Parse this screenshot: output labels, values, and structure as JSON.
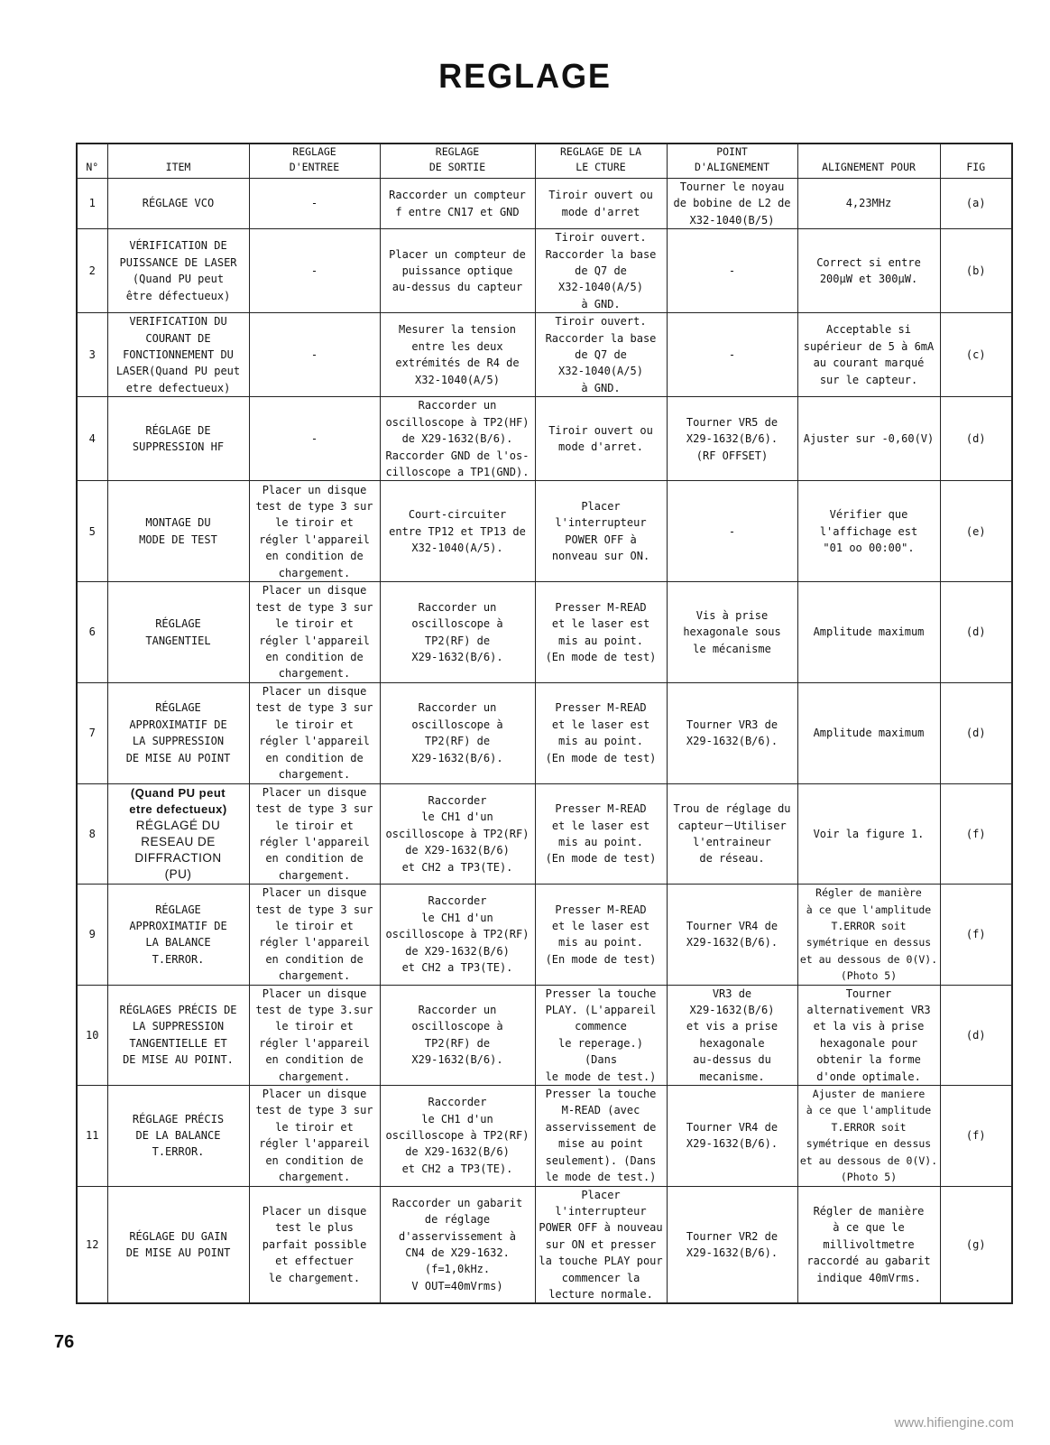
{
  "title": "REGLAGE",
  "page_number": "76",
  "watermark": "www.hifiengine.com",
  "table": {
    "headers": [
      "N°",
      "ITEM",
      "REGLAGE\nD'ENTREE",
      "REGLAGE\nDE SORTIE",
      "REGLAGE DE LA\nLE CTURE",
      "POINT\nD'ALIGNEMENT",
      "ALIGNEMENT POUR",
      "FIG"
    ],
    "rows": [
      [
        "1",
        "RÉGLAGE VCO",
        "-",
        "Raccorder un compteur\nf entre CN17 et GND",
        "Tiroir ouvert ou\nmode d'arret",
        "Tourner le noyau\nde bobine de L2 de\nX32-1040(B/5)",
        "4,23MHz",
        "(a)"
      ],
      [
        "2",
        "VÉRIFICATION DE\nPUISSANCE DE LASER\n(Quand PU peut\nêtre défectueux)",
        "-",
        "Placer un compteur de\npuissance optique\nau-dessus du capteur",
        "Tiroir ouvert.\nRaccorder la base\nde Q7 de\nX32-1040(A/5)\nà GND.",
        "-",
        "Correct si entre\n200μW et 300μW.",
        "(b)"
      ],
      [
        "3",
        "VERIFICATION DU\nCOURANT DE\nFONCTIONNEMENT DU\nLASER(Quand PU peut\netre defectueux)",
        "-",
        "Mesurer la tension\nentre les deux\nextrémités de R4 de\nX32-1040(A/5)",
        "Tiroir ouvert.\nRaccorder la base\nde Q7 de\nX32-1040(A/5)\nà GND.",
        "-",
        "Acceptable si\nsupérieur de 5 à 6mA\nau courant marqué\nsur le capteur.",
        "(c)"
      ],
      [
        "4",
        "RÉGLAGE DE\nSUPPRESSION HF",
        "-",
        "Raccorder un\noscilloscope à TP2(HF)\nde X29-1632(B/6).\nRaccorder GND de l'os-\ncilloscope a TP1(GND).",
        "Tiroir ouvert ou\nmode d'arret.",
        "Tourner VR5 de\nX29-1632(B/6).\n(RF OFFSET)",
        "Ajuster sur -0,60(V)",
        "(d)"
      ],
      [
        "5",
        "MONTAGE DU\nMODE DE TEST",
        "Placer un disque\ntest de type 3 sur\nle tiroir et\nrégler l'appareil\nen condition de\nchargement.",
        "Court-circuiter\nentre TP12 et TP13 de\nX32-1040(A/5).",
        "Placer\nl'interrupteur\nPOWER OFF à\nnonveau sur ON.",
        "-",
        "Vérifier que\nl'affichage est\n\"01 oo 00:00\".",
        "(e)"
      ],
      [
        "6",
        "RÉGLAGE\nTANGENTIEL",
        "Placer un disque\ntest de type 3 sur\nle tiroir et\nrégler l'appareil\nen condition de\nchargement.",
        "Raccorder un\noscilloscope à\nTP2(RF) de\nX29-1632(B/6).",
        "Presser M-READ\net le laser est\nmis au point.\n(En mode de test)",
        "Vis à prise\nhexagonale sous\nle mécanisme",
        "Amplitude maximum",
        "(d)"
      ],
      [
        "7",
        "RÉGLAGE\nAPPROXIMATIF DE\nLA SUPPRESSION\nDE MISE AU POINT",
        "Placer un disque\ntest de type 3 sur\nle tiroir et\nrégler l'appareil\nen condition de\nchargement.",
        "Raccorder un\noscilloscope à\nTP2(RF) de\nX29-1632(B/6).",
        "Presser M-READ\net le laser est\nmis au point.\n(En mode de test)",
        "Tourner VR3 de\nX29-1632(B/6).",
        "Amplitude maximum",
        "(d)"
      ],
      [
        "8",
        "(Quand PU peut\netre defectueux)\nRÉGLAGÉ DU\nRESEAU DE\nDIFFRACTION\n(PU)",
        "Placer un disque\ntest de type 3 sur\nle tiroir et\nrégler l'appareil\nen condition de\nchargement.",
        "Raccorder\nle CH1 d'un\noscilloscope à TP2(RF)\nde X29-1632(B/6)\net CH2 a TP3(TE).",
        "Presser M-READ\net le laser est\nmis au point.\n(En mode de test)",
        "Trou de réglage du\ncapteur－Utiliser\nl'entraineur\nde réseau.",
        "Voir la figure 1.",
        "(f)"
      ],
      [
        "9",
        "RÉGLAGE\nAPPROXIMATIF DE\nLA BALANCE\nT.ERROR.",
        "Placer un disque\ntest de type 3 sur\nle tiroir et\nrégler l'appareil\nen condition de\nchargement.",
        "Raccorder\nle CH1 d'un\noscilloscope à TP2(RF)\nde X29-1632(B/6)\net CH2 a TP3(TE).",
        "Presser M-READ\net le laser est\nmis au point.\n(En mode de test)",
        "Tourner VR4 de\nX29-1632(B/6).",
        "Régler de manière\nà ce que l'amplitude\nT.ERROR soit\nsymétrique en dessus\net au dessous de 0(V).\n(Photo 5)",
        "(f)"
      ],
      [
        "10",
        "RÉGLAGES PRÉCIS DE\nLA SUPPRESSION\nTANGENTIELLE ET\nDE MISE AU POINT.",
        "Placer un disque\ntest de type 3.sur\nle tiroir et\nrégler l'appareil\nen condition de\nchargement.",
        "Raccorder un\noscilloscope à\nTP2(RF) de\nX29-1632(B/6).",
        "Presser la touche\nPLAY. (L'appareil\ncommence\nle reperage.)\n(Dans\nle mode de test.)",
        "VR3 de\nX29-1632(B/6)\net vis a prise\nhexagonale\nau-dessus du\nmecanisme.",
        "Tourner\nalternativement VR3\net la vis à prise\nhexagonale pour\nobtenir la forme\nd'onde optimale.",
        "(d)"
      ],
      [
        "11",
        "RÉGLAGE PRÉCIS\nDE LA BALANCE\nT.ERROR.",
        "Placer un disque\ntest de type 3 sur\nle tiroir et\nrégler l'appareil\nen condition de\nchargement.",
        "Raccorder\nle CH1 d'un\noscilloscope à TP2(RF)\nde X29-1632(B/6)\net CH2 a TP3(TE).",
        "Presser la touche\nM-READ (avec\nasservissement de\nmise au point\nseulement). (Dans\nle mode de test.)",
        "Tourner VR4 de\nX29-1632(B/6).",
        "Ajuster de maniere\nà ce que l'amplitude\nT.ERROR soit\nsymétrique en dessus\net au dessous de 0(V).\n(Photo 5)",
        "(f)"
      ],
      [
        "12",
        "RÉGLAGE DU GAIN\nDE MISE AU POINT",
        "Placer un disque\ntest le plus\nparfait possible\net effectuer\nle chargement.",
        "Raccorder un gabarit\nde réglage\nd'asservissement à\nCN4 de X29-1632.\n(f=1,0kHz.\nV OUT=40mVrms)",
        "Placer\nl'interrupteur\nPOWER OFF à nouveau\nsur ON et presser\nla touche PLAY pour\ncommencer la\nlecture normale.",
        "Tourner VR2 de\nX29-1632(B/6).",
        "Régler de manière\nà ce que le\nmillivoltmetre\nraccordé au gabarit\nindique 40mVrms.",
        "(g)"
      ]
    ]
  }
}
